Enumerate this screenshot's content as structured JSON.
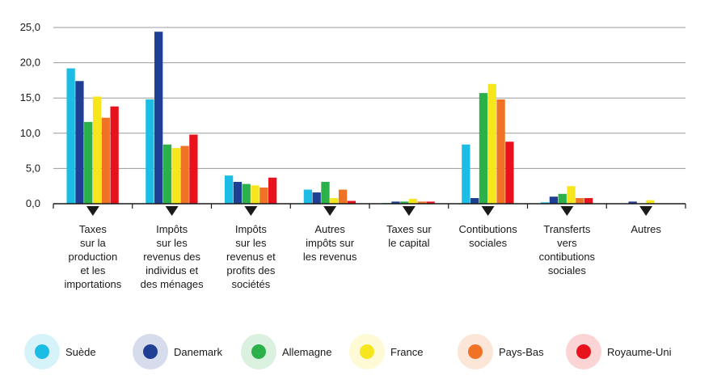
{
  "chart_data": {
    "type": "bar",
    "categories": [
      [
        "Taxes",
        "sur la",
        "production",
        "et les",
        "importations"
      ],
      [
        "Impôts",
        "sur les",
        "revenus des",
        "individus et",
        "des ménages"
      ],
      [
        "Impôts",
        "sur les",
        "revenus et",
        "profits des",
        "sociétés"
      ],
      [
        "Autres",
        "impôts sur",
        "les revenus"
      ],
      [
        "Taxes sur",
        "le capital"
      ],
      [
        "Contibutions",
        "sociales"
      ],
      [
        "Transferts",
        "vers",
        "contibutions",
        "sociales"
      ],
      [
        "Autres"
      ]
    ],
    "series": [
      {
        "name": "Suède",
        "color": "#1BBDE4",
        "values": [
          19.2,
          14.8,
          4.0,
          2.0,
          0.1,
          8.4,
          0.2,
          0.0
        ]
      },
      {
        "name": "Danemark",
        "color": "#1E3F93",
        "values": [
          17.4,
          24.4,
          3.1,
          1.6,
          0.3,
          0.8,
          1.0,
          0.3
        ]
      },
      {
        "name": "Allemagne",
        "color": "#2BB04A",
        "values": [
          11.6,
          8.4,
          2.8,
          3.1,
          0.3,
          15.7,
          1.4,
          0.0
        ]
      },
      {
        "name": "France",
        "color": "#F7E61D",
        "values": [
          15.2,
          7.9,
          2.6,
          0.8,
          0.7,
          17.0,
          2.5,
          0.5
        ]
      },
      {
        "name": "Pays-Bas",
        "color": "#F07224",
        "values": [
          12.2,
          8.2,
          2.3,
          2.0,
          0.3,
          14.8,
          0.8,
          0.0
        ]
      },
      {
        "name": "Royaume-Uni",
        "color": "#E8121D",
        "values": [
          13.8,
          9.8,
          3.7,
          0.4,
          0.3,
          8.8,
          0.8,
          0.0
        ]
      }
    ],
    "y_ticks": [
      "0,0",
      "5,0",
      "10,0",
      "15,0",
      "20,0",
      "25,0"
    ],
    "ylim": [
      0,
      25
    ],
    "grid": true,
    "legend_position": "bottom"
  },
  "colors": {
    "axis": "#1a1a1a",
    "grid": "#9a9a9a",
    "marker": "#1a1a1a"
  }
}
